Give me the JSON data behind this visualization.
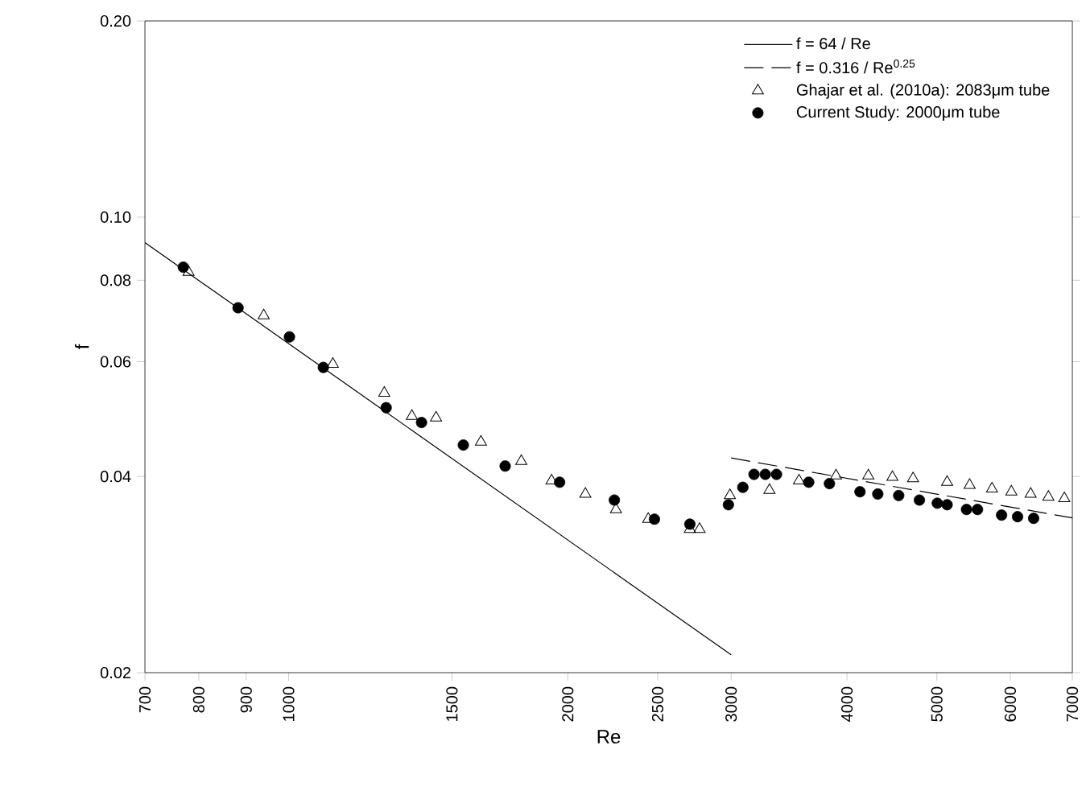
{
  "chart_data": {
    "type": "scatter",
    "xlabel": "Re",
    "ylabel": "f",
    "log": "xy",
    "legend": "top right",
    "xlim": [
      700,
      7000
    ],
    "ylim": [
      0.02,
      0.2
    ],
    "xticks": [
      700,
      800,
      900,
      1000,
      1500,
      2000,
      2500,
      3000,
      4000,
      5000,
      6000,
      7000
    ],
    "yticks": [
      0.02,
      0.04,
      0.06,
      0.08,
      {
        "value": 0.1,
        "label": "0.10"
      },
      {
        "value": 0.2,
        "label": "0.20"
      }
    ],
    "series": [
      {
        "name": "f = 64 / Re",
        "type": "line",
        "line_style": "solid",
        "color": "#000000",
        "x": [
          700,
          3000
        ],
        "values": [
          0.0914,
          0.0213
        ]
      },
      {
        "name": "f = 0.316 / Re$^{0.25}$",
        "type": "line",
        "line_style": "dashed",
        "color": "#000000",
        "x": [
          3000,
          7000
        ],
        "values": [
          0.0427,
          0.03455
        ]
      },
      {
        "name": "Ghajar et al. (2010a): 2083μm tube",
        "marker": "triangle",
        "color": "#000000",
        "x": [
          780,
          940,
          1116,
          1268,
          1358,
          1442,
          1612,
          1782,
          1921,
          2089,
          2254,
          2442,
          2480,
          2708,
          2774,
          2991,
          3300,
          3551,
          3893,
          4218,
          4478,
          4713,
          5129,
          5424,
          5734,
          6016,
          6311,
          6596,
          6862
        ],
        "values": [
          0.0823,
          0.0706,
          0.0595,
          0.0537,
          0.0495,
          0.0492,
          0.0452,
          0.0422,
          0.0394,
          0.0376,
          0.0356,
          0.0344,
          null,
          0.0332,
          0.0332,
          0.0374,
          0.0381,
          0.0394,
          0.0401,
          0.0401,
          0.0399,
          0.0397,
          0.0392,
          0.0388,
          0.0383,
          0.0379,
          0.0376,
          0.0372,
          0.037
        ]
      },
      {
        "name": "Current Study: 2000μm tube",
        "marker": "circle",
        "color": "#000000",
        "x": [
          770,
          882,
          1002,
          1090,
          1274,
          1391,
          1543,
          1712,
          1960,
          2245,
          2480,
          2708,
          2980,
          3089,
          3176,
          3266,
          3358,
          3638,
          3830,
          4131,
          4318,
          4548,
          4788,
          5005,
          5129,
          5382,
          5531,
          5872,
          6110,
          6358
        ],
        "values": [
          0.0838,
          0.0726,
          0.0655,
          0.0588,
          0.051,
          0.0484,
          0.0447,
          0.0415,
          0.0392,
          0.0368,
          0.0344,
          0.0338,
          0.0362,
          0.0385,
          0.0403,
          0.0403,
          0.0403,
          0.0392,
          0.039,
          0.0379,
          0.0376,
          0.0374,
          0.0368,
          0.0364,
          0.0362,
          0.0356,
          0.0356,
          0.0349,
          0.0347,
          0.0345
        ]
      }
    ]
  }
}
